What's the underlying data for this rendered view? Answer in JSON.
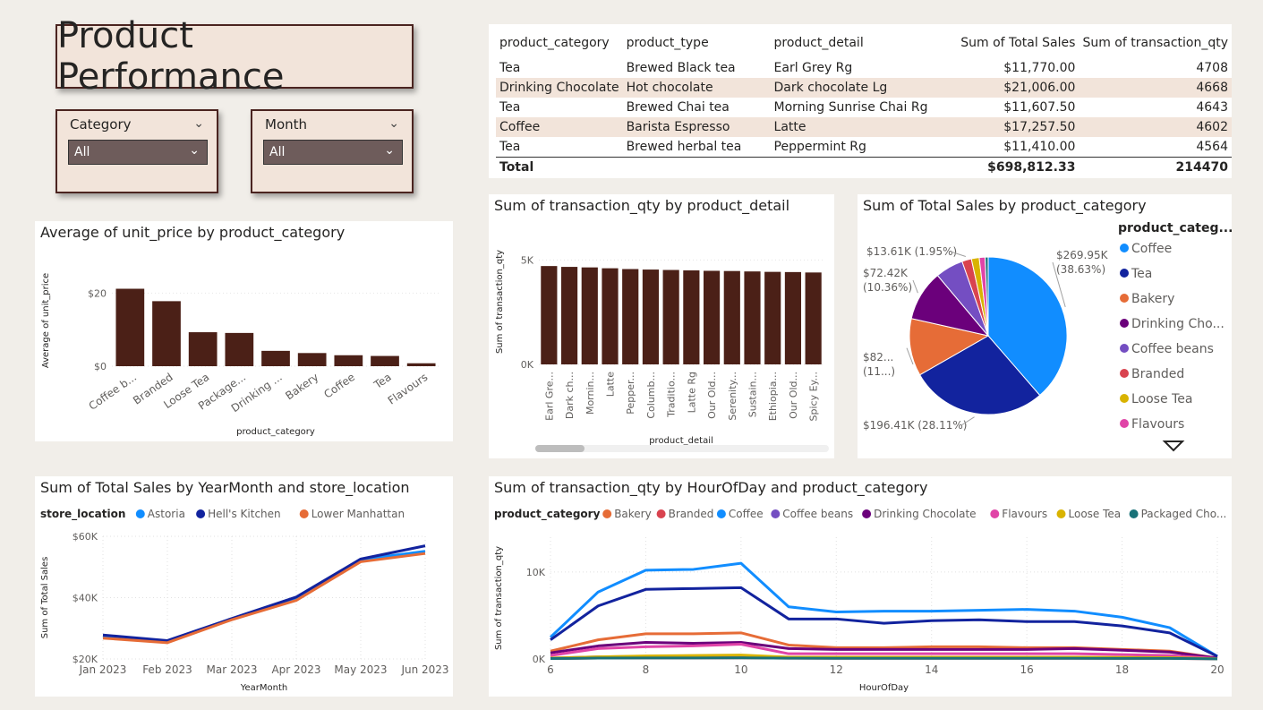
{
  "dashboard": {
    "title": "Product Performance"
  },
  "slicers": [
    {
      "label": "Category",
      "value": "All"
    },
    {
      "label": "Month",
      "value": "All"
    }
  ],
  "table": {
    "headers": [
      "product_category",
      "product_type",
      "product_detail",
      "Sum of Total Sales",
      "Sum of transaction_qty"
    ],
    "rows": [
      [
        "Tea",
        "Brewed Black tea",
        "Earl Grey Rg",
        "$11,770.00",
        "4708"
      ],
      [
        "Drinking Chocolate",
        "Hot chocolate",
        "Dark chocolate Lg",
        "$21,006.00",
        "4668"
      ],
      [
        "Tea",
        "Brewed Chai tea",
        "Morning Sunrise Chai Rg",
        "$11,607.50",
        "4643"
      ],
      [
        "Coffee",
        "Barista Espresso",
        "Latte",
        "$17,257.50",
        "4602"
      ],
      [
        "Tea",
        "Brewed herbal tea",
        "Peppermint Rg",
        "$11,410.00",
        "4564"
      ]
    ],
    "total_label": "Total",
    "total_sales": "$698,812.33",
    "total_qty": "214470"
  },
  "chart_data": [
    {
      "id": "avg-price",
      "type": "bar",
      "title": "Average of unit_price by product_category",
      "xlabel": "product_category",
      "ylabel": "Average of unit_price",
      "categories": [
        "Coffee b...",
        "Branded",
        "Loose Tea",
        "Package...",
        "Drinking ...",
        "Bakery",
        "Coffee",
        "Tea",
        "Flavours"
      ],
      "values": [
        21.2,
        17.8,
        9.3,
        9.1,
        4.2,
        3.6,
        3.0,
        2.8,
        0.8
      ],
      "ylim": [
        0,
        25
      ],
      "yticks": [
        "$0",
        "$20"
      ],
      "ytick_values": [
        0,
        20
      ],
      "color": "#4b2017"
    },
    {
      "id": "qty-detail",
      "type": "bar",
      "title": "Sum of transaction_qty by product_detail",
      "xlabel": "product_detail",
      "ylabel": "Sum of transaction_qty",
      "categories": [
        "Earl Gre...",
        "Dark ch...",
        "Mornin...",
        "Latte",
        "Pepper...",
        "Columb...",
        "Traditio...",
        "Latte Rg",
        "Our Old...",
        "Serenity...",
        "Sustain...",
        "Ethiopia...",
        "Our Old...",
        "Spicy Ey..."
      ],
      "values": [
        4708,
        4668,
        4643,
        4602,
        4564,
        4540,
        4520,
        4500,
        4480,
        4470,
        4450,
        4430,
        4420,
        4400
      ],
      "ylim": [
        0,
        6000
      ],
      "yticks": [
        "0K",
        "5K"
      ],
      "ytick_values": [
        0,
        5000
      ],
      "color": "#4b2017"
    },
    {
      "id": "sales-pie",
      "type": "pie",
      "title": "Sum of Total Sales by product_category",
      "legend_title": "product_categ...",
      "slices": [
        {
          "name": "Coffee",
          "value": 269.95,
          "label": "$269.95K",
          "pct": "(38.63%)",
          "color": "#118dff"
        },
        {
          "name": "Tea",
          "value": 196.41,
          "label": "$196.41K (28.11%)",
          "color": "#12239e"
        },
        {
          "name": "Bakery",
          "value": 82.3,
          "label": "$82...",
          "pct": "(11...)",
          "color": "#e66c37"
        },
        {
          "name": "Drinking Cho...",
          "value": 72.42,
          "label": "$72.42K",
          "pct": "(10.36%)",
          "color": "#6b007b"
        },
        {
          "name": "Coffee beans",
          "value": 40.09,
          "label": "",
          "color": "#744ec2"
        },
        {
          "name": "Branded",
          "value": 13.61,
          "label": "$13.61K (1.95%)",
          "color": "#d9434f"
        },
        {
          "name": "Loose Tea",
          "value": 11.2,
          "label": "",
          "color": "#d9b300"
        },
        {
          "name": "Flavours",
          "value": 8.4,
          "label": "",
          "color": "#e044a7"
        },
        {
          "name": "Packaged Chocolate",
          "value": 4.4,
          "label": "",
          "color": "#197278"
        }
      ]
    },
    {
      "id": "sales-month",
      "type": "line",
      "title": "Sum of Total Sales by YearMonth and store_location",
      "legend_title": "store_location",
      "xlabel": "YearMonth",
      "ylabel": "Sum of Total Sales",
      "categories": [
        "Jan 2023",
        "Feb 2023",
        "Mar 2023",
        "Apr 2023",
        "May 2023",
        "Jun 2023"
      ],
      "ylim": [
        20000,
        60000
      ],
      "yticks": [
        "$20K",
        "$40K",
        "$60K"
      ],
      "ytick_values": [
        20000,
        40000,
        60000
      ],
      "series": [
        {
          "name": "Astoria",
          "color": "#118dff",
          "values": [
            27300,
            25700,
            33000,
            39700,
            52400,
            55100
          ]
        },
        {
          "name": "Hell's Kitchen",
          "color": "#12239e",
          "values": [
            27800,
            26000,
            33200,
            40200,
            52600,
            56900
          ]
        },
        {
          "name": "Lower Manhattan",
          "color": "#e66c37",
          "values": [
            26800,
            25300,
            32800,
            39100,
            51700,
            54400
          ]
        }
      ]
    },
    {
      "id": "qty-hour",
      "type": "line",
      "title": "Sum of transaction_qty by HourOfDay and product_category",
      "legend_title": "product_category",
      "xlabel": "HourOfDay",
      "ylabel": "Sum of transaction_qty",
      "x": [
        6,
        7,
        8,
        9,
        10,
        11,
        12,
        13,
        14,
        15,
        16,
        17,
        18,
        19,
        20
      ],
      "xticks": [
        6,
        8,
        10,
        12,
        14,
        16,
        18,
        20
      ],
      "ylim": [
        0,
        14000
      ],
      "yticks": [
        "0K",
        "10K"
      ],
      "ytick_values": [
        0,
        10000
      ],
      "series": [
        {
          "name": "Bakery",
          "color": "#e66c37",
          "values": [
            900,
            2200,
            2900,
            2900,
            3000,
            1600,
            1300,
            1300,
            1400,
            1400,
            1300,
            1300,
            1100,
            900,
            100
          ]
        },
        {
          "name": "Branded",
          "color": "#d9434f",
          "values": [
            50,
            100,
            120,
            120,
            130,
            90,
            80,
            80,
            80,
            80,
            80,
            80,
            70,
            60,
            10
          ]
        },
        {
          "name": "Coffee",
          "color": "#118dff",
          "values": [
            2500,
            7700,
            10200,
            10300,
            11000,
            6000,
            5400,
            5500,
            5500,
            5600,
            5700,
            5500,
            4800,
            3600,
            300
          ]
        },
        {
          "name": "Coffee beans",
          "color": "#744ec2",
          "values": [
            100,
            250,
            300,
            300,
            320,
            200,
            180,
            180,
            180,
            180,
            180,
            170,
            150,
            120,
            20
          ]
        },
        {
          "name": "Drinking Chocolate",
          "color": "#6b007b",
          "values": [
            700,
            1500,
            1900,
            1800,
            1900,
            1200,
            1100,
            1100,
            1100,
            1100,
            1100,
            1200,
            1000,
            800,
            100
          ]
        },
        {
          "name": "Flavours",
          "color": "#e044a7",
          "values": [
            400,
            1200,
            1400,
            1500,
            1700,
            600,
            600,
            600,
            600,
            600,
            600,
            600,
            500,
            400,
            50
          ]
        },
        {
          "name": "Loose Tea",
          "color": "#d9b300",
          "values": [
            100,
            250,
            350,
            400,
            450,
            200,
            200,
            200,
            200,
            200,
            200,
            200,
            180,
            150,
            20
          ]
        },
        {
          "name": "Packaged Cho...",
          "color": "#197278",
          "values": [
            50,
            100,
            120,
            120,
            130,
            90,
            80,
            80,
            80,
            80,
            80,
            80,
            70,
            60,
            10
          ]
        },
        {
          "name": "Tea",
          "color": "#12239e",
          "values": [
            2200,
            6100,
            8000,
            8100,
            8200,
            4600,
            4600,
            4100,
            4400,
            4500,
            4300,
            4300,
            3800,
            3000,
            300
          ]
        }
      ]
    }
  ]
}
